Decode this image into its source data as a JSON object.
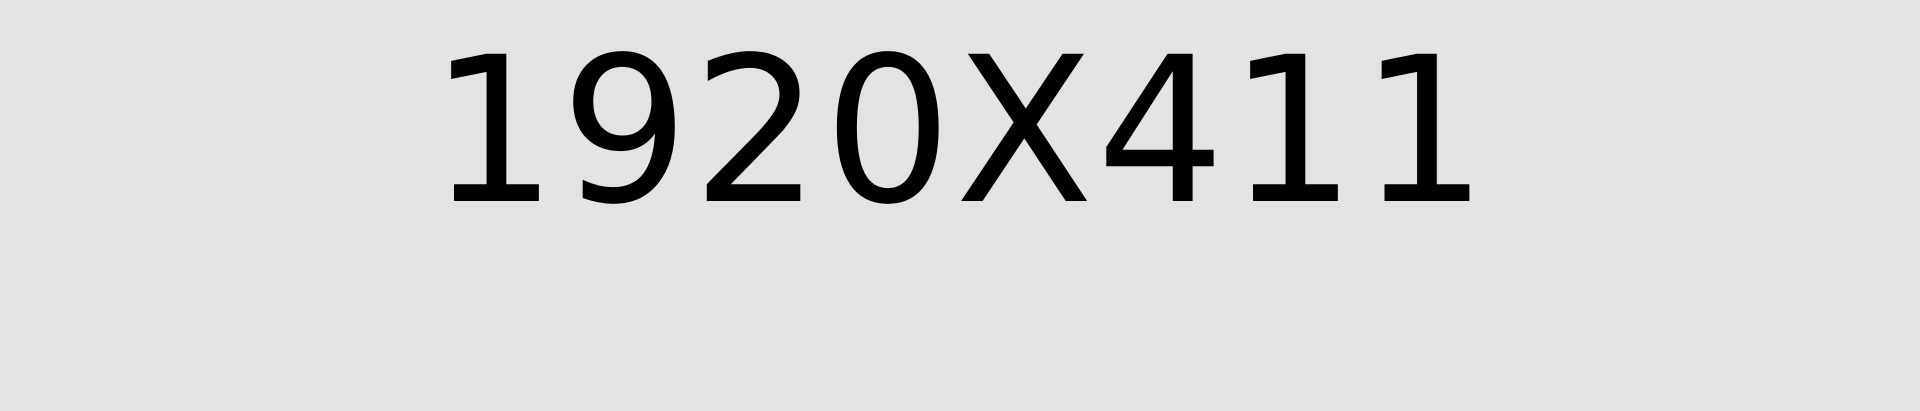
{
  "placeholder": {
    "label": "1920X411",
    "background_color": "#e3e3e3",
    "text_color": "#000000"
  }
}
